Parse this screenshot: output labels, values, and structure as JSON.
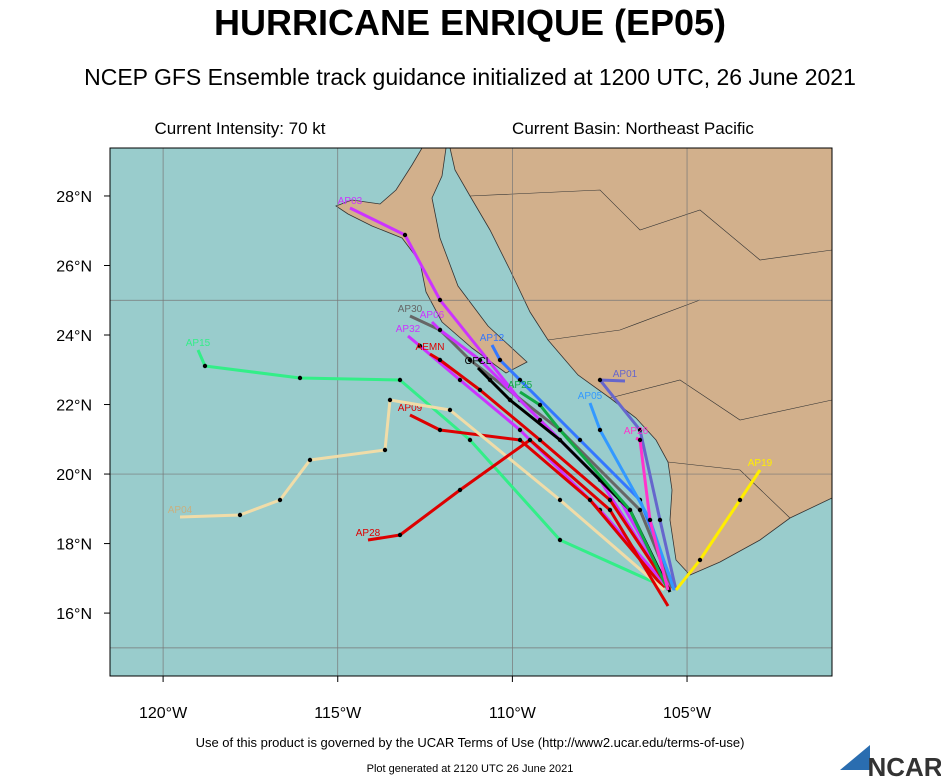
{
  "header": {
    "title": "HURRICANE ENRIQUE (EP05)",
    "subtitle": "NCEP GFS Ensemble track guidance initialized at 1200 UTC, 26 June 2021"
  },
  "info": {
    "intensity": "Current Intensity: 70 kt",
    "basin": "Current Basin: Northeast Pacific"
  },
  "map": {
    "lat_ticks": [
      {
        "value": 28,
        "label": "28°N"
      },
      {
        "value": 26,
        "label": "26°N"
      },
      {
        "value": 24,
        "label": "24°N"
      },
      {
        "value": 22,
        "label": "22°N"
      },
      {
        "value": 20,
        "label": "20°N"
      },
      {
        "value": 18,
        "label": "18°N"
      },
      {
        "value": 16,
        "label": "16°N"
      }
    ],
    "lon_ticks": [
      {
        "value": -120,
        "label": "120°W"
      },
      {
        "value": -115,
        "label": "115°W"
      },
      {
        "value": -110,
        "label": "110°W"
      },
      {
        "value": -105,
        "label": "105°W"
      }
    ],
    "grid_lat": [
      15,
      20,
      25
    ],
    "grid_lon": [
      -120,
      -115,
      -110,
      -105
    ],
    "tracks": [
      {
        "name": "AP03",
        "color": "#cc33ff"
      },
      {
        "name": "AP30",
        "color": "#666666"
      },
      {
        "name": "AP06",
        "color": "#cc33ff"
      },
      {
        "name": "AP32",
        "color": "#cc33ff"
      },
      {
        "name": "AP15",
        "color": "#33ee88"
      },
      {
        "name": "AEMN",
        "color": "#dd0000"
      },
      {
        "name": "AP12",
        "color": "#3377ff"
      },
      {
        "name": "OFCL",
        "color": "#000000"
      },
      {
        "name": "AP01",
        "color": "#6666cc"
      },
      {
        "name": "AP05",
        "color": "#3399ff"
      },
      {
        "name": "AP25",
        "color": "#11aa44"
      },
      {
        "name": "AP09",
        "color": "#dd0000"
      },
      {
        "name": "AP04",
        "color": "#f0dca8"
      },
      {
        "name": "AP28",
        "color": "#dd0000"
      },
      {
        "name": "AP19",
        "color": "#ffee00"
      },
      {
        "name": "AP26",
        "color": "#ff33cc"
      }
    ]
  },
  "footer": {
    "terms": "Use of this product is governed by the UCAR Terms of Use (http://www2.ucar.edu/terms-of-use)",
    "generated": "Plot generated at 2120 UTC   26 June 2021",
    "logo": "NCAR"
  }
}
